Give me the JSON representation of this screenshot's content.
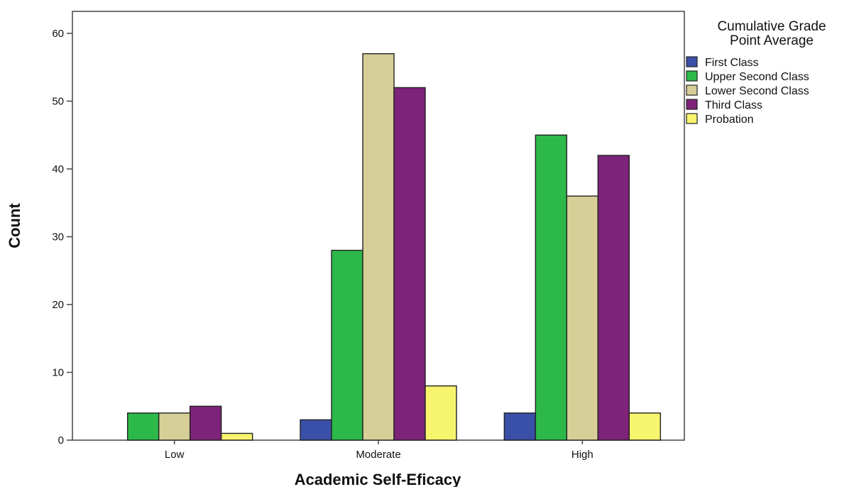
{
  "chart_data": {
    "type": "bar",
    "categories": [
      "Low",
      "Moderate",
      "High"
    ],
    "series": [
      {
        "name": "First Class",
        "values": [
          0,
          3,
          4
        ],
        "color": "#3a4fa8"
      },
      {
        "name": "Upper Second Class",
        "values": [
          4,
          28,
          45
        ],
        "color": "#2db84a"
      },
      {
        "name": "Lower Second Class",
        "values": [
          4,
          57,
          36
        ],
        "color": "#d6cf98"
      },
      {
        "name": "Third Class",
        "values": [
          5,
          52,
          42
        ],
        "color": "#7d2379"
      },
      {
        "name": "Probation",
        "values": [
          1,
          8,
          4
        ],
        "color": "#f7f46e"
      }
    ],
    "xlabel": "Academic Self-Eficacy",
    "ylabel": "Count",
    "ylim": [
      0,
      60
    ],
    "yticks": [
      0,
      10,
      20,
      30,
      40,
      50,
      60
    ],
    "legend": {
      "title_lines": [
        "Cumulative Grade",
        "Point Average"
      ],
      "placement": "top-right, outside plot"
    },
    "grid": false
  }
}
